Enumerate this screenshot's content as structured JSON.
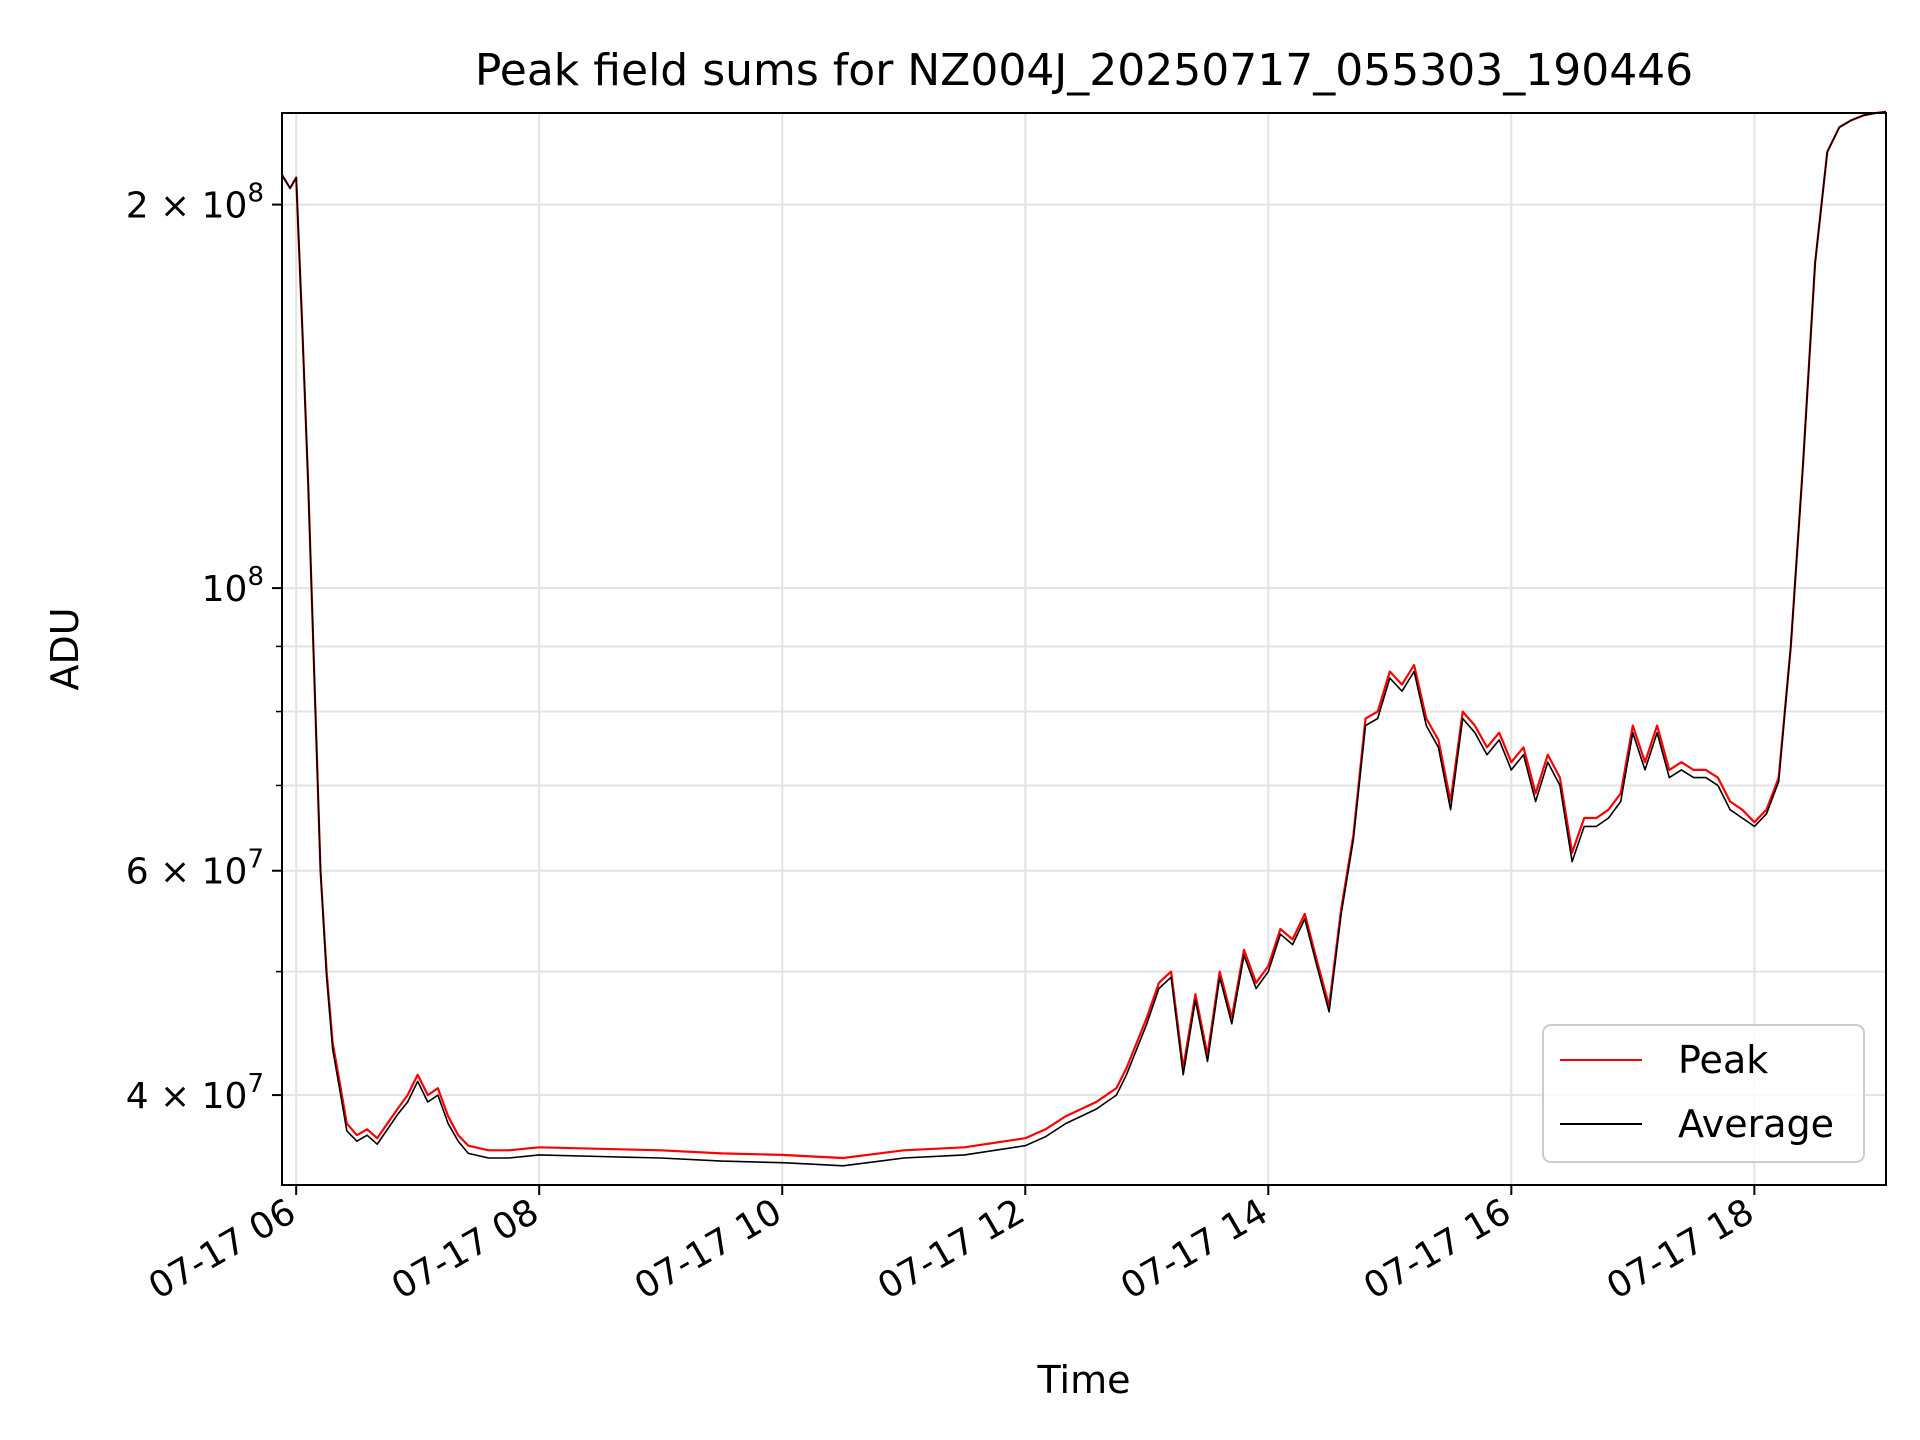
{
  "chart_data": {
    "type": "line",
    "title": "Peak field sums for NZ004J_20250717_055303_190446",
    "xlabel": "Time",
    "ylabel": "ADU",
    "y_scale": "log",
    "grid": true,
    "legend_position": "lower-right",
    "xlim": [
      "2025-07-17 05:53",
      "2025-07-17 19:05"
    ],
    "ylim": [
      34000000,
      236000000
    ],
    "x_ticks": [
      {
        "value": "2025-07-17 06:00",
        "label": "07-17 06"
      },
      {
        "value": "2025-07-17 08:00",
        "label": "07-17 08"
      },
      {
        "value": "2025-07-17 10:00",
        "label": "07-17 10"
      },
      {
        "value": "2025-07-17 12:00",
        "label": "07-17 12"
      },
      {
        "value": "2025-07-17 14:00",
        "label": "07-17 14"
      },
      {
        "value": "2025-07-17 16:00",
        "label": "07-17 16"
      },
      {
        "value": "2025-07-17 18:00",
        "label": "07-17 18"
      }
    ],
    "y_ticks_major": [
      {
        "value": 40000000,
        "mantissa": "4",
        "exponent": "7",
        "times": "×"
      },
      {
        "value": 60000000,
        "mantissa": "6",
        "exponent": "7",
        "times": "×"
      },
      {
        "value": 100000000,
        "mantissa": "",
        "exponent": "8",
        "times": ""
      },
      {
        "value": 200000000,
        "mantissa": "2",
        "exponent": "8",
        "times": "×"
      }
    ],
    "y_ticks_minor": [
      50000000,
      70000000,
      80000000,
      90000000
    ],
    "base_label": "10",
    "series": [
      {
        "name": "Peak",
        "color": "#ff0000",
        "x": [
          "2025-07-17 05:53",
          "2025-07-17 05:57",
          "2025-07-17 06:00",
          "2025-07-17 06:03",
          "2025-07-17 06:06",
          "2025-07-17 06:12",
          "2025-07-17 06:15",
          "2025-07-17 06:18",
          "2025-07-17 06:22",
          "2025-07-17 06:25",
          "2025-07-17 06:30",
          "2025-07-17 06:35",
          "2025-07-17 06:40",
          "2025-07-17 06:50",
          "2025-07-17 06:55",
          "2025-07-17 07:00",
          "2025-07-17 07:05",
          "2025-07-17 07:10",
          "2025-07-17 07:15",
          "2025-07-17 07:20",
          "2025-07-17 07:25",
          "2025-07-17 07:35",
          "2025-07-17 07:45",
          "2025-07-17 08:00",
          "2025-07-17 08:30",
          "2025-07-17 09:00",
          "2025-07-17 09:30",
          "2025-07-17 10:00",
          "2025-07-17 10:15",
          "2025-07-17 10:30",
          "2025-07-17 11:00",
          "2025-07-17 11:30",
          "2025-07-17 12:00",
          "2025-07-17 12:10",
          "2025-07-17 12:20",
          "2025-07-17 12:35",
          "2025-07-17 12:45",
          "2025-07-17 12:50",
          "2025-07-17 13:00",
          "2025-07-17 13:06",
          "2025-07-17 13:12",
          "2025-07-17 13:18",
          "2025-07-17 13:24",
          "2025-07-17 13:30",
          "2025-07-17 13:36",
          "2025-07-17 13:42",
          "2025-07-17 13:48",
          "2025-07-17 13:54",
          "2025-07-17 14:00",
          "2025-07-17 14:06",
          "2025-07-17 14:12",
          "2025-07-17 14:18",
          "2025-07-17 14:24",
          "2025-07-17 14:30",
          "2025-07-17 14:36",
          "2025-07-17 14:42",
          "2025-07-17 14:48",
          "2025-07-17 14:54",
          "2025-07-17 15:00",
          "2025-07-17 15:06",
          "2025-07-17 15:12",
          "2025-07-17 15:18",
          "2025-07-17 15:24",
          "2025-07-17 15:30",
          "2025-07-17 15:36",
          "2025-07-17 15:42",
          "2025-07-17 15:48",
          "2025-07-17 15:54",
          "2025-07-17 16:00",
          "2025-07-17 16:06",
          "2025-07-17 16:12",
          "2025-07-17 16:18",
          "2025-07-17 16:24",
          "2025-07-17 16:30",
          "2025-07-17 16:36",
          "2025-07-17 16:42",
          "2025-07-17 16:48",
          "2025-07-17 16:54",
          "2025-07-17 17:00",
          "2025-07-17 17:06",
          "2025-07-17 17:12",
          "2025-07-17 17:18",
          "2025-07-17 17:24",
          "2025-07-17 17:30",
          "2025-07-17 17:36",
          "2025-07-17 17:42",
          "2025-07-17 17:48",
          "2025-07-17 17:54",
          "2025-07-17 18:00",
          "2025-07-17 18:06",
          "2025-07-17 18:12",
          "2025-07-17 18:18",
          "2025-07-17 18:24",
          "2025-07-17 18:30",
          "2025-07-17 18:36",
          "2025-07-17 18:42",
          "2025-07-17 18:48",
          "2025-07-17 18:54",
          "2025-07-17 19:00",
          "2025-07-17 19:05"
        ],
        "y": [
          211000000,
          206000000,
          210000000,
          160000000,
          120000000,
          60000000,
          50000000,
          44000000,
          40500000,
          38000000,
          37200000,
          37600000,
          37000000,
          39000000,
          40000000,
          41500000,
          40000000,
          40500000,
          38500000,
          37200000,
          36500000,
          36200000,
          36200000,
          36400000,
          36300000,
          36200000,
          36000000,
          35900000,
          35800000,
          35700000,
          36200000,
          36400000,
          37000000,
          37600000,
          38500000,
          39500000,
          40500000,
          42000000,
          46000000,
          49000000,
          50000000,
          42000000,
          48000000,
          43000000,
          50000000,
          46000000,
          52000000,
          49000000,
          50500000,
          54000000,
          53000000,
          55500000,
          51000000,
          47000000,
          56000000,
          64000000,
          79000000,
          80000000,
          86000000,
          84000000,
          87000000,
          79000000,
          76000000,
          68000000,
          80000000,
          78000000,
          75000000,
          77000000,
          73000000,
          75000000,
          69000000,
          74000000,
          71000000,
          62000000,
          66000000,
          66000000,
          67000000,
          69000000,
          78000000,
          73000000,
          78000000,
          72000000,
          73000000,
          72000000,
          72000000,
          71000000,
          68000000,
          67000000,
          65500000,
          67000000,
          71000000,
          90000000,
          125000000,
          180000000,
          220000000,
          230000000,
          233000000,
          235000000,
          236000000,
          236500000
        ]
      },
      {
        "name": "Average",
        "color": "#000000",
        "x": [
          "2025-07-17 05:53",
          "2025-07-17 05:57",
          "2025-07-17 06:00",
          "2025-07-17 06:03",
          "2025-07-17 06:06",
          "2025-07-17 06:12",
          "2025-07-17 06:15",
          "2025-07-17 06:18",
          "2025-07-17 06:22",
          "2025-07-17 06:25",
          "2025-07-17 06:30",
          "2025-07-17 06:35",
          "2025-07-17 06:40",
          "2025-07-17 06:50",
          "2025-07-17 06:55",
          "2025-07-17 07:00",
          "2025-07-17 07:05",
          "2025-07-17 07:10",
          "2025-07-17 07:15",
          "2025-07-17 07:20",
          "2025-07-17 07:25",
          "2025-07-17 07:35",
          "2025-07-17 07:45",
          "2025-07-17 08:00",
          "2025-07-17 08:30",
          "2025-07-17 09:00",
          "2025-07-17 09:30",
          "2025-07-17 10:00",
          "2025-07-17 10:15",
          "2025-07-17 10:30",
          "2025-07-17 11:00",
          "2025-07-17 11:30",
          "2025-07-17 12:00",
          "2025-07-17 12:10",
          "2025-07-17 12:20",
          "2025-07-17 12:35",
          "2025-07-17 12:45",
          "2025-07-17 12:50",
          "2025-07-17 13:00",
          "2025-07-17 13:06",
          "2025-07-17 13:12",
          "2025-07-17 13:18",
          "2025-07-17 13:24",
          "2025-07-17 13:30",
          "2025-07-17 13:36",
          "2025-07-17 13:42",
          "2025-07-17 13:48",
          "2025-07-17 13:54",
          "2025-07-17 14:00",
          "2025-07-17 14:06",
          "2025-07-17 14:12",
          "2025-07-17 14:18",
          "2025-07-17 14:24",
          "2025-07-17 14:30",
          "2025-07-17 14:36",
          "2025-07-17 14:42",
          "2025-07-17 14:48",
          "2025-07-17 14:54",
          "2025-07-17 15:00",
          "2025-07-17 15:06",
          "2025-07-17 15:12",
          "2025-07-17 15:18",
          "2025-07-17 15:24",
          "2025-07-17 15:30",
          "2025-07-17 15:36",
          "2025-07-17 15:42",
          "2025-07-17 15:48",
          "2025-07-17 15:54",
          "2025-07-17 16:00",
          "2025-07-17 16:06",
          "2025-07-17 16:12",
          "2025-07-17 16:18",
          "2025-07-17 16:24",
          "2025-07-17 16:30",
          "2025-07-17 16:36",
          "2025-07-17 16:42",
          "2025-07-17 16:48",
          "2025-07-17 16:54",
          "2025-07-17 17:00",
          "2025-07-17 17:06",
          "2025-07-17 17:12",
          "2025-07-17 17:18",
          "2025-07-17 17:24",
          "2025-07-17 17:30",
          "2025-07-17 17:36",
          "2025-07-17 17:42",
          "2025-07-17 17:48",
          "2025-07-17 17:54",
          "2025-07-17 18:00",
          "2025-07-17 18:06",
          "2025-07-17 18:12",
          "2025-07-17 18:18",
          "2025-07-17 18:24",
          "2025-07-17 18:30",
          "2025-07-17 18:36",
          "2025-07-17 18:42",
          "2025-07-17 18:48",
          "2025-07-17 18:54",
          "2025-07-17 19:00",
          "2025-07-17 19:05"
        ],
        "y": [
          211000000,
          206000000,
          210000000,
          160000000,
          120000000,
          60000000,
          49500000,
          43500000,
          40000000,
          37500000,
          36800000,
          37200000,
          36600000,
          38600000,
          39500000,
          41000000,
          39500000,
          40000000,
          38000000,
          36800000,
          36000000,
          35700000,
          35700000,
          35900000,
          35800000,
          35700000,
          35500000,
          35400000,
          35300000,
          35200000,
          35700000,
          35900000,
          36500000,
          37100000,
          38000000,
          39000000,
          40000000,
          41500000,
          45500000,
          48500000,
          49500000,
          41500000,
          47500000,
          42500000,
          49500000,
          45500000,
          51500000,
          48500000,
          50000000,
          53500000,
          52500000,
          55000000,
          50500000,
          46500000,
          55500000,
          63500000,
          78000000,
          79000000,
          85000000,
          83000000,
          86000000,
          78000000,
          75000000,
          67000000,
          79000000,
          77000000,
          74000000,
          76000000,
          72000000,
          74000000,
          68000000,
          73000000,
          70000000,
          61000000,
          65000000,
          65000000,
          66000000,
          68000000,
          77000000,
          72000000,
          77000000,
          71000000,
          72000000,
          71000000,
          71000000,
          70000000,
          67000000,
          66000000,
          65000000,
          66500000,
          70500000,
          90000000,
          125000000,
          180000000,
          220000000,
          230000000,
          233000000,
          235000000,
          236000000,
          236500000
        ]
      }
    ]
  }
}
